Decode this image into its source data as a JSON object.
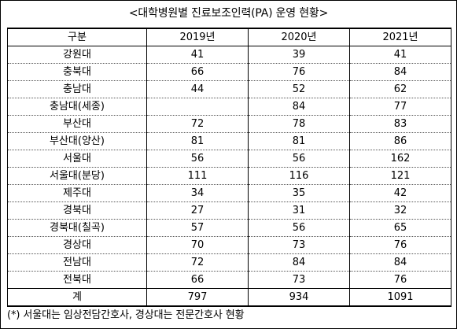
{
  "title": "<대학병원별 진료보조인력(PA) 운영 현황>",
  "table": {
    "headers": [
      "구분",
      "2019년",
      "2020년",
      "2021년"
    ],
    "rows": [
      [
        "강원대",
        "41",
        "39",
        "41"
      ],
      [
        "충북대",
        "66",
        "76",
        "84"
      ],
      [
        "충남대",
        "44",
        "52",
        "62"
      ],
      [
        "충남대(세종)",
        "",
        "84",
        "77"
      ],
      [
        "부산대",
        "72",
        "78",
        "83"
      ],
      [
        "부산대(양산)",
        "81",
        "81",
        "86"
      ],
      [
        "서울대",
        "56",
        "56",
        "162"
      ],
      [
        "서울대(분당)",
        "111",
        "116",
        "121"
      ],
      [
        "제주대",
        "34",
        "35",
        "42"
      ],
      [
        "경북대",
        "27",
        "31",
        "32"
      ],
      [
        "경북대(칠곡)",
        "57",
        "56",
        "65"
      ],
      [
        "경상대",
        "70",
        "73",
        "76"
      ],
      [
        "전남대",
        "72",
        "84",
        "84"
      ],
      [
        "전북대",
        "66",
        "73",
        "76"
      ]
    ],
    "total": [
      "계",
      "797",
      "934",
      "1091"
    ]
  },
  "note": "(*) 서울대는 임상전담간호사, 경상대는 전문간호사 현황"
}
